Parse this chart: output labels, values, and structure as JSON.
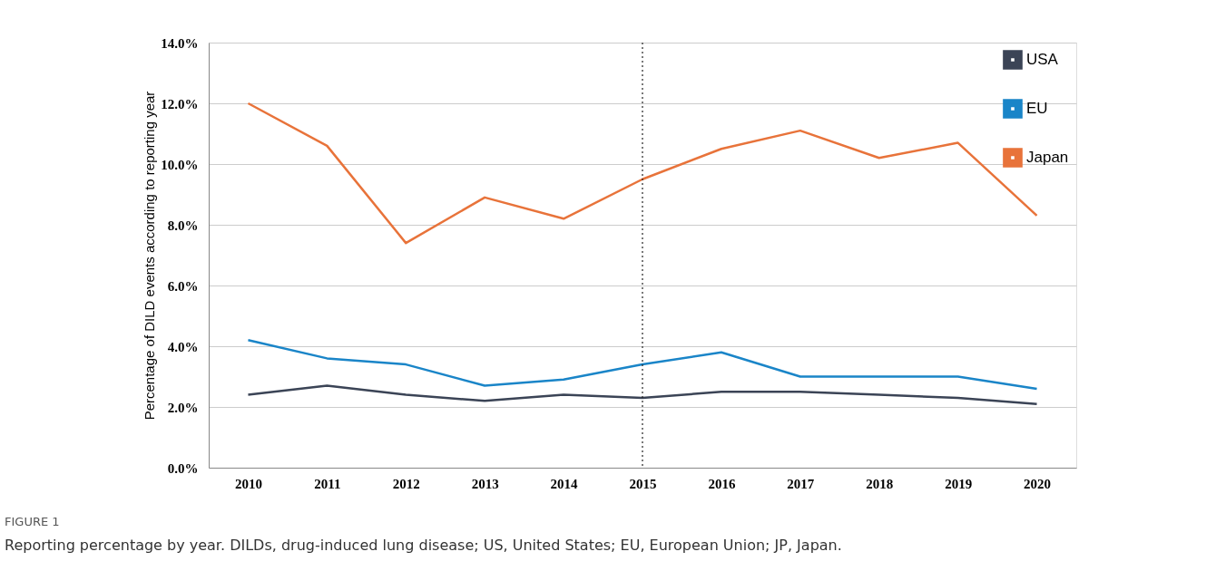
{
  "chart_data": {
    "type": "line",
    "ylabel": "Percentage of DILD events according to reporting year",
    "categories": [
      "2010",
      "2011",
      "2012",
      "2013",
      "2014",
      "2015",
      "2016",
      "2017",
      "2018",
      "2019",
      "2020"
    ],
    "series": [
      {
        "name": "USA",
        "color": "#3b4456",
        "values": [
          2.4,
          2.7,
          2.4,
          2.2,
          2.4,
          2.3,
          2.5,
          2.5,
          2.4,
          2.3,
          2.1
        ]
      },
      {
        "name": "EU",
        "color": "#1a85c8",
        "values": [
          4.2,
          3.6,
          3.4,
          2.7,
          2.9,
          3.4,
          3.8,
          3.0,
          3.0,
          3.0,
          2.6
        ]
      },
      {
        "name": "Japan",
        "color": "#e8733a",
        "values": [
          12.0,
          10.6,
          7.4,
          8.9,
          8.2,
          9.5,
          10.5,
          11.1,
          10.2,
          10.7,
          8.3
        ]
      }
    ],
    "ylim": [
      0,
      14
    ],
    "yticks": [
      {
        "value": 0,
        "label": "0.0%"
      },
      {
        "value": 2,
        "label": "2.0%"
      },
      {
        "value": 4,
        "label": "4.0%"
      },
      {
        "value": 6,
        "label": "6.0%"
      },
      {
        "value": 8,
        "label": "8.0%"
      },
      {
        "value": 10,
        "label": "10.0%"
      },
      {
        "value": 12,
        "label": "12.0%"
      },
      {
        "value": 14,
        "label": "14.0%"
      }
    ],
    "grid": "y",
    "legend": "top right",
    "line_style": "solid",
    "marker": "none",
    "ref_lines": [
      {
        "axis": "x",
        "value": "2015",
        "line_style": "dotted",
        "color": "#222222"
      }
    ],
    "annotations": [
      "FIGURE 1",
      "Reporting percentage by year. DILDs, drug-induced lung disease; US, United States; EU, European Union; JP, Japan."
    ]
  }
}
